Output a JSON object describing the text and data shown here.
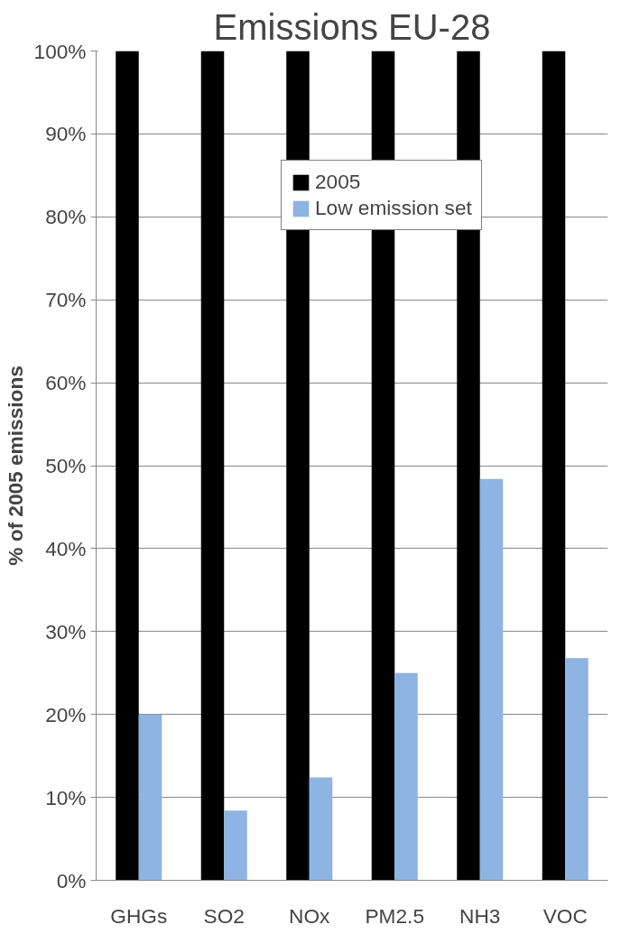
{
  "chart_data": {
    "type": "bar",
    "title": "Emissions EU-28",
    "ylabel": "% of 2005 emissions",
    "categories": [
      "GHGs",
      "SO2",
      "NOx",
      "PM2.5",
      "NH3",
      "VOC"
    ],
    "series": [
      {
        "name": "2005",
        "color": "#000000",
        "values": [
          100,
          100,
          100,
          100,
          100,
          100
        ]
      },
      {
        "name": "Low emission set",
        "color": "#8db4e2",
        "values": [
          20,
          8.4,
          12.4,
          25,
          48.4,
          26.8
        ]
      }
    ],
    "ylim": [
      0,
      100
    ],
    "yticks": [
      {
        "value": 0,
        "label": "0%"
      },
      {
        "value": 10,
        "label": "10%"
      },
      {
        "value": 20,
        "label": "20%"
      },
      {
        "value": 30,
        "label": "30%"
      },
      {
        "value": 40,
        "label": "40%"
      },
      {
        "value": 50,
        "label": "50%"
      },
      {
        "value": 60,
        "label": "60%"
      },
      {
        "value": 70,
        "label": "70%"
      },
      {
        "value": 80,
        "label": "80%"
      },
      {
        "value": 90,
        "label": "90%"
      },
      {
        "value": 100,
        "label": "100%"
      }
    ],
    "grid": "y",
    "legend": "top right"
  }
}
